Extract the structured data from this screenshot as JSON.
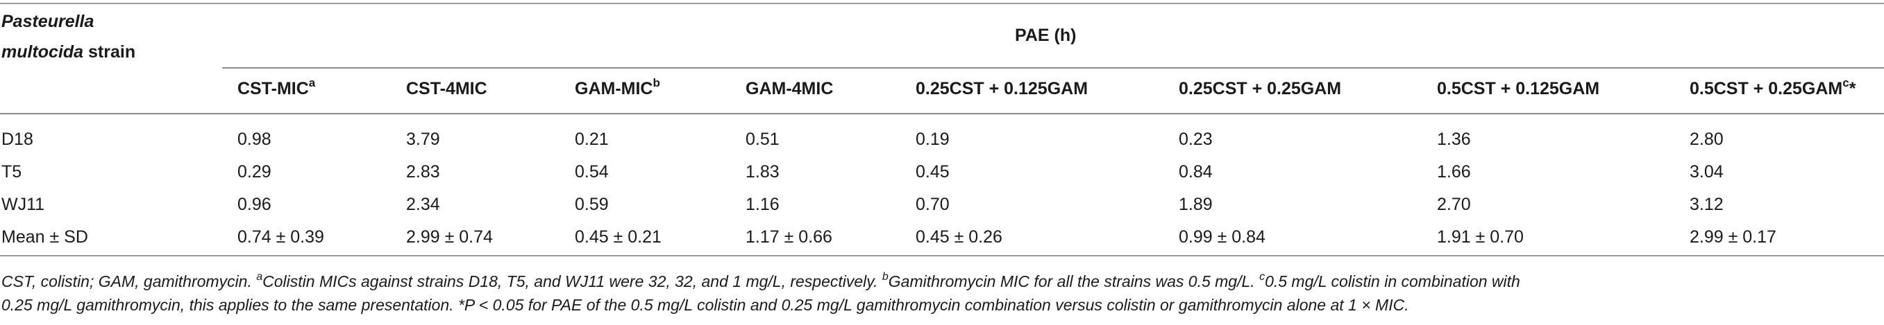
{
  "header": {
    "strain_label_italic": "Pasteurella",
    "strain_label_line2_italic": "multocida",
    "strain_label_line2_rest": " strain",
    "pae_label": "PAE (h)",
    "columns": [
      {
        "main": "CST-MIC",
        "sup": "a",
        "tail": ""
      },
      {
        "main": "CST-4MIC",
        "sup": "",
        "tail": ""
      },
      {
        "main": "GAM-MIC",
        "sup": "b",
        "tail": ""
      },
      {
        "main": "GAM-4MIC",
        "sup": "",
        "tail": ""
      },
      {
        "main": "0.25CST + 0.125GAM",
        "sup": "",
        "tail": ""
      },
      {
        "main": "0.25CST + 0.25GAM",
        "sup": "",
        "tail": ""
      },
      {
        "main": "0.5CST + 0.125GAM",
        "sup": "",
        "tail": ""
      },
      {
        "main": "0.5CST + 0.25GAM",
        "sup": "c",
        "tail": "*"
      }
    ]
  },
  "rows": [
    {
      "strain": "D18",
      "values": [
        "0.98",
        "3.79",
        "0.21",
        "0.51",
        "0.19",
        "0.23",
        "1.36",
        "2.80"
      ]
    },
    {
      "strain": "T5",
      "values": [
        "0.29",
        "2.83",
        "0.54",
        "1.83",
        "0.45",
        "0.84",
        "1.66",
        "3.04"
      ]
    },
    {
      "strain": "WJ11",
      "values": [
        "0.96",
        "2.34",
        "0.59",
        "1.16",
        "0.70",
        "1.89",
        "2.70",
        "3.12"
      ]
    },
    {
      "strain": "Mean ± SD",
      "values": [
        "0.74 ± 0.39",
        "2.99 ± 0.74",
        "0.45 ± 0.21",
        "1.17 ± 0.66",
        "0.45 ± 0.26",
        "0.99 ± 0.84",
        "1.91 ± 0.70",
        "2.99 ± 0.17"
      ]
    }
  ],
  "footnote": {
    "line1_a": "CST, colistin; GAM, gamithromycin. ",
    "line1_sup_a": "a",
    "line1_b": "Colistin MICs against strains D18, T5, and WJ11 were 32, 32, and 1 mg/L, respectively. ",
    "line1_sup_b": "b",
    "line1_c": "Gamithromycin MIC for all the strains was 0.5 mg/L. ",
    "line1_sup_c": "c",
    "line1_d": "0.5 mg/L colistin in combination with",
    "line2": "0.25 mg/L gamithromycin, this applies to the same presentation. *P < 0.05 for PAE of the 0.5 mg/L colistin and 0.25 mg/L gamithromycin combination versus colistin or gamithromycin alone at 1 × MIC."
  }
}
